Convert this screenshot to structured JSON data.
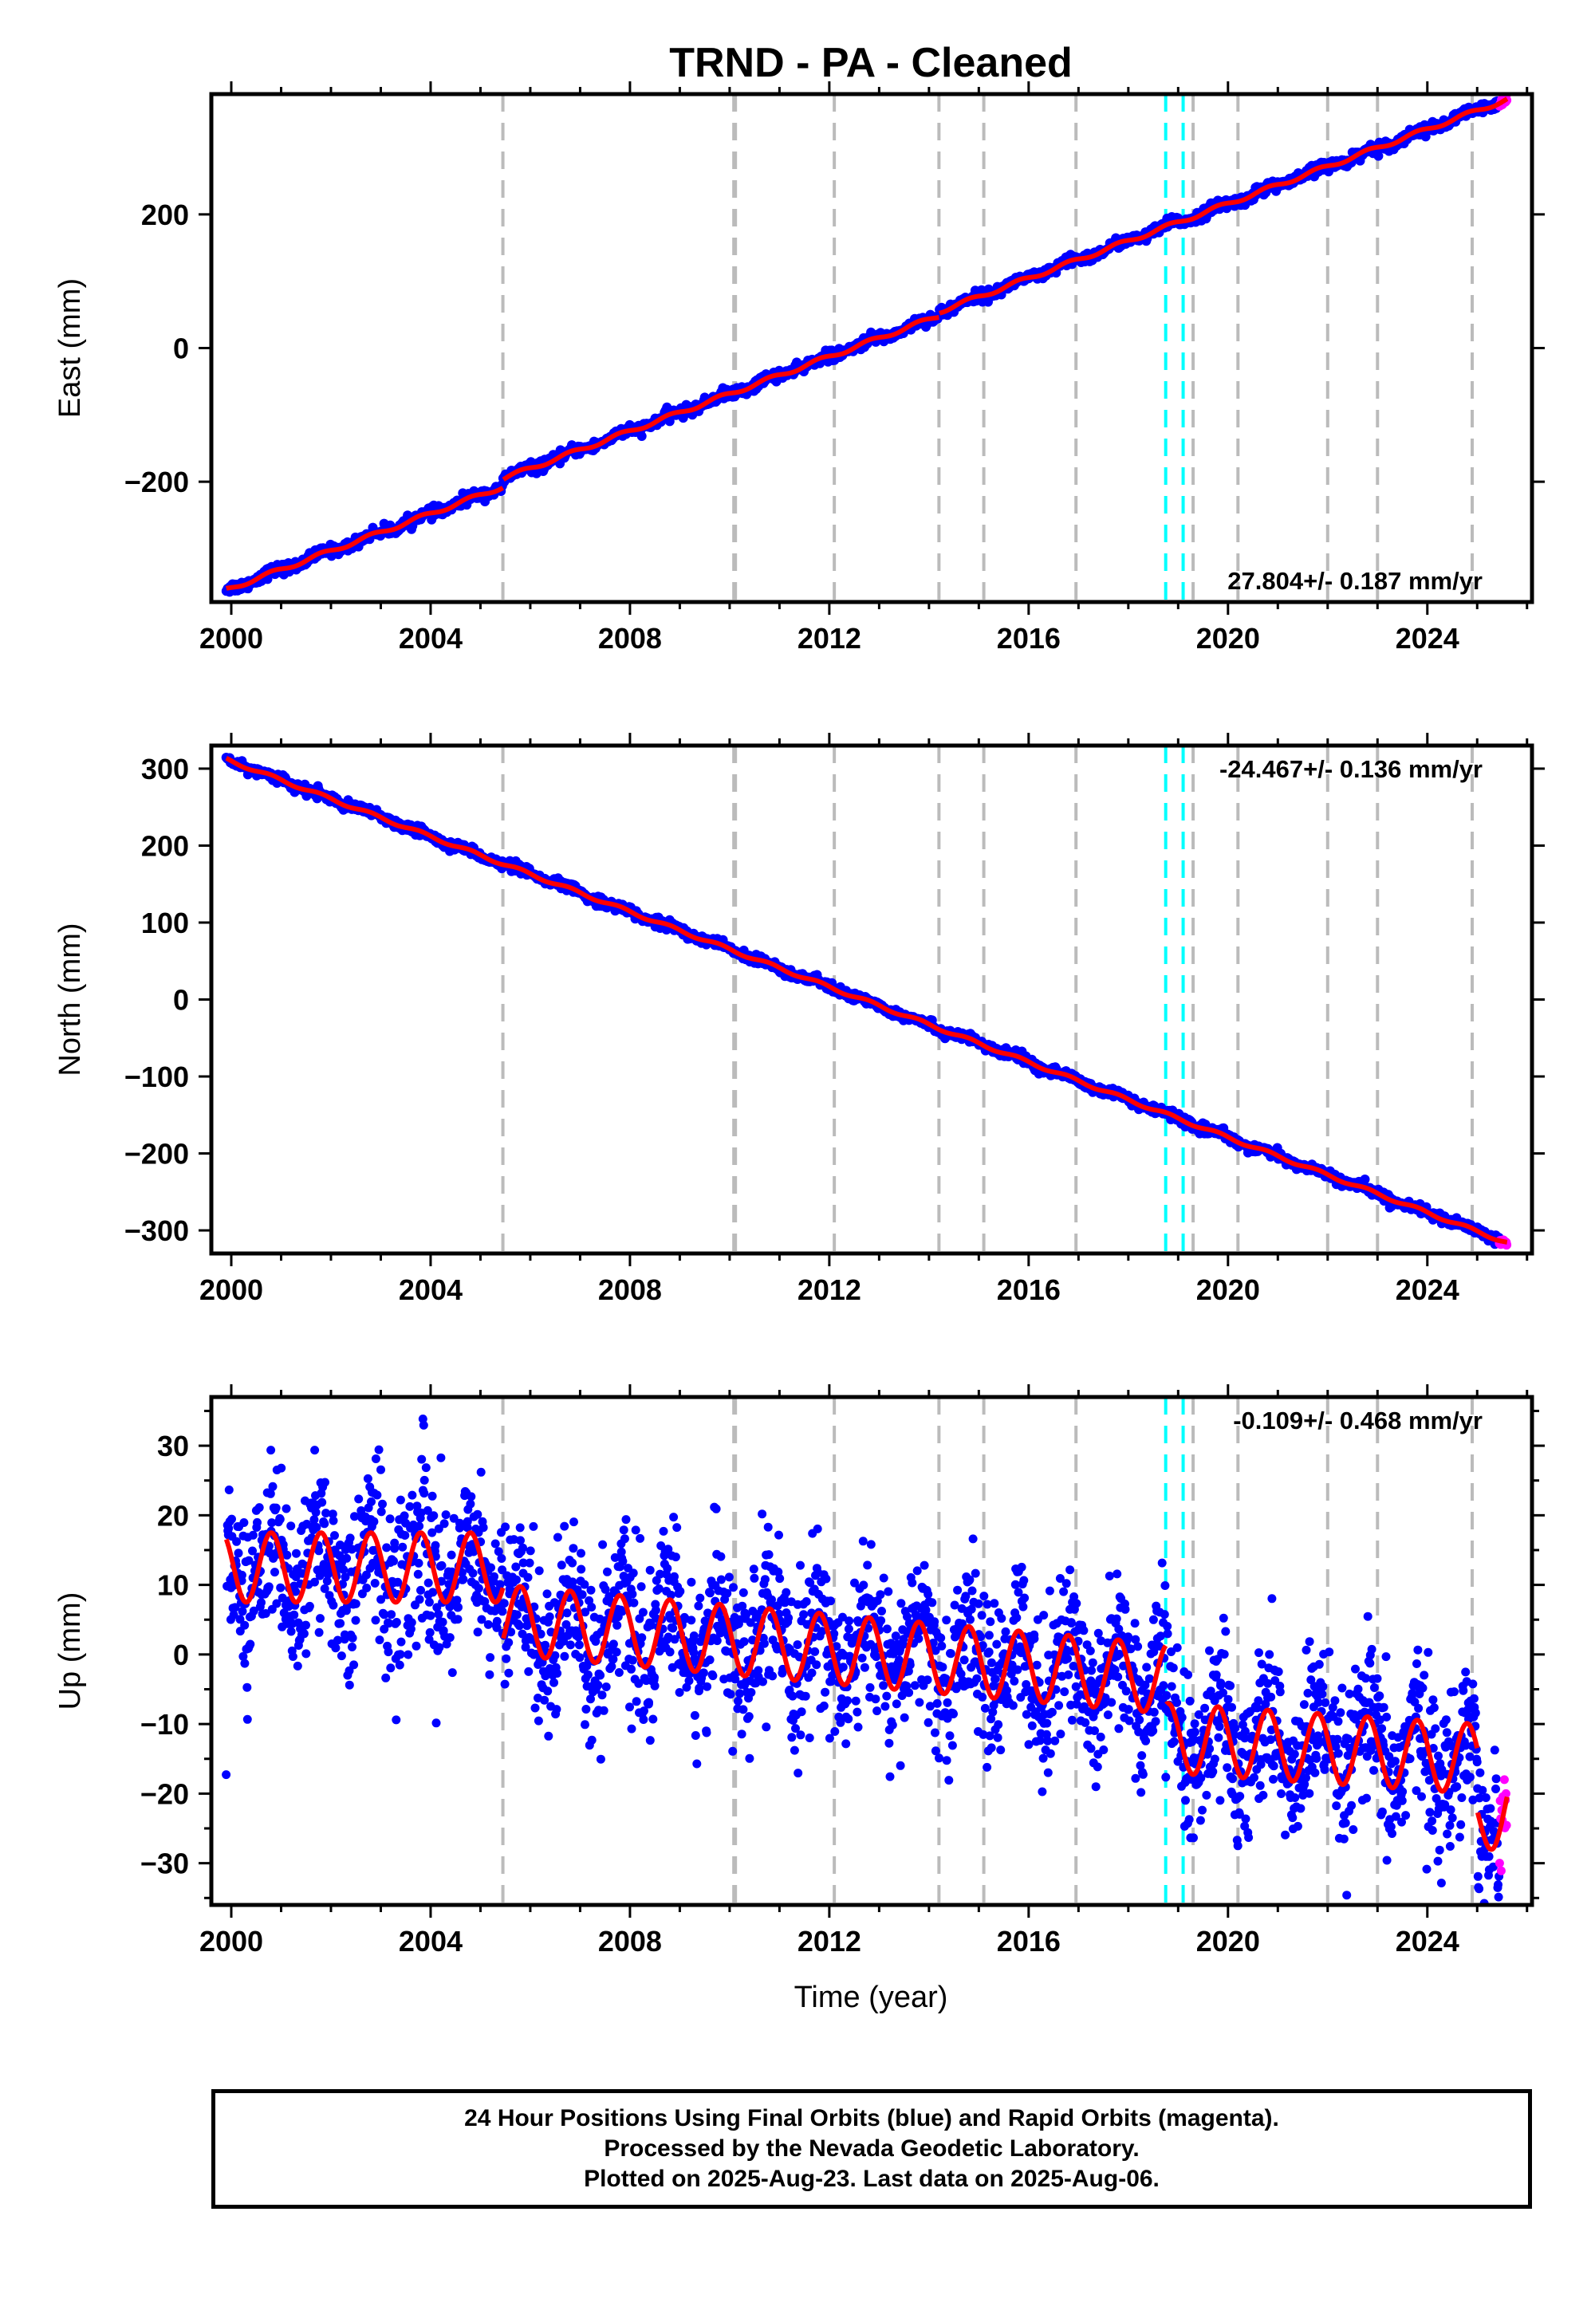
{
  "title": "TRND  - PA - Cleaned",
  "colors": {
    "final_orbits": "#0000ff",
    "rapid_orbits": "#ff00ff",
    "model_fit": "#ff0000",
    "equipment_change": "#bbbbbb",
    "earthquake": "#00ffff"
  },
  "chart_data": [
    {
      "type": "scatter",
      "name": "east",
      "ylabel": "East (mm)",
      "xlim": [
        1999.6,
        2026.1
      ],
      "ylim": [
        -380,
        380
      ],
      "x_ticks": [
        2000,
        2004,
        2008,
        2012,
        2016,
        2020,
        2024
      ],
      "y_ticks": [
        -200,
        0,
        200
      ],
      "rate_label": "27.804+/- 0.187 mm/yr",
      "rate_label_position": "bottom-right",
      "start": {
        "x": 1999.9,
        "y": -362
      },
      "end": {
        "x": 2025.6,
        "y": 372
      },
      "offsets": [
        {
          "x": 2005.45,
          "y": 12
        },
        {
          "x": 2014.2,
          "y": 6
        }
      ],
      "seasonal_amplitude": 3,
      "scatter_noise": 4,
      "equipment_changes": [
        2005.45,
        2010.1,
        2012.1,
        2014.2,
        2015.1,
        2016.95,
        2019.3,
        2020.2,
        2022.0,
        2023.0,
        2024.9
      ],
      "earthquakes": [
        2018.75,
        2019.1
      ]
    },
    {
      "type": "scatter",
      "name": "north",
      "ylabel": "North (mm)",
      "xlim": [
        1999.6,
        2026.1
      ],
      "ylim": [
        -330,
        330
      ],
      "x_ticks": [
        2000,
        2004,
        2008,
        2012,
        2016,
        2020,
        2024
      ],
      "y_ticks": [
        -300,
        -200,
        -100,
        0,
        100,
        200,
        300
      ],
      "rate_label": "-24.467+/- 0.136 mm/yr",
      "rate_label_position": "top-right",
      "start": {
        "x": 1999.9,
        "y": 312
      },
      "end": {
        "x": 2025.6,
        "y": -316
      },
      "offsets": [],
      "seasonal_amplitude": 2,
      "scatter_noise": 3,
      "equipment_changes": [
        2005.45,
        2010.1,
        2012.1,
        2014.2,
        2015.1,
        2016.95,
        2019.3,
        2020.2,
        2022.0,
        2023.0,
        2024.9
      ],
      "earthquakes": [
        2018.75,
        2019.1
      ]
    },
    {
      "type": "scatter",
      "name": "up",
      "ylabel": "Up (mm)",
      "xlabel": "Time (year)",
      "xlim": [
        1999.6,
        2026.1
      ],
      "ylim": [
        -36,
        37
      ],
      "x_ticks": [
        2000,
        2004,
        2008,
        2012,
        2016,
        2020,
        2024
      ],
      "y_ticks": [
        -30,
        -20,
        -10,
        0,
        10,
        20,
        30
      ],
      "rate_label": "-0.109+/- 0.468 mm/yr",
      "rate_label_position": "top-right",
      "segments": [
        {
          "x": [
            1999.9,
            2005.45
          ],
          "mean": [
            12.5,
            12.5
          ]
        },
        {
          "x": [
            2005.45,
            2018.75
          ],
          "mean": [
            5,
            -3.5
          ]
        },
        {
          "x": [
            2018.75,
            2025.0
          ],
          "mean": [
            -12,
            -15
          ]
        },
        {
          "x": [
            2025.0,
            2025.6
          ],
          "mean": [
            -24,
            -22
          ]
        }
      ],
      "seasonal_amplitude": 5,
      "scatter_noise": 5.5,
      "equipment_changes": [
        2005.45,
        2010.1,
        2012.1,
        2014.2,
        2015.1,
        2016.95,
        2019.3,
        2020.2,
        2022.0,
        2023.0,
        2024.9
      ],
      "earthquakes": [
        2018.75,
        2019.1
      ]
    }
  ],
  "footer": {
    "line1": "24 Hour Positions Using Final Orbits (blue) and Rapid Orbits (magenta).",
    "line2": "Processed by the Nevada Geodetic Laboratory.",
    "line3": "Plotted on 2025-Aug-23. Last data on 2025-Aug-06."
  }
}
